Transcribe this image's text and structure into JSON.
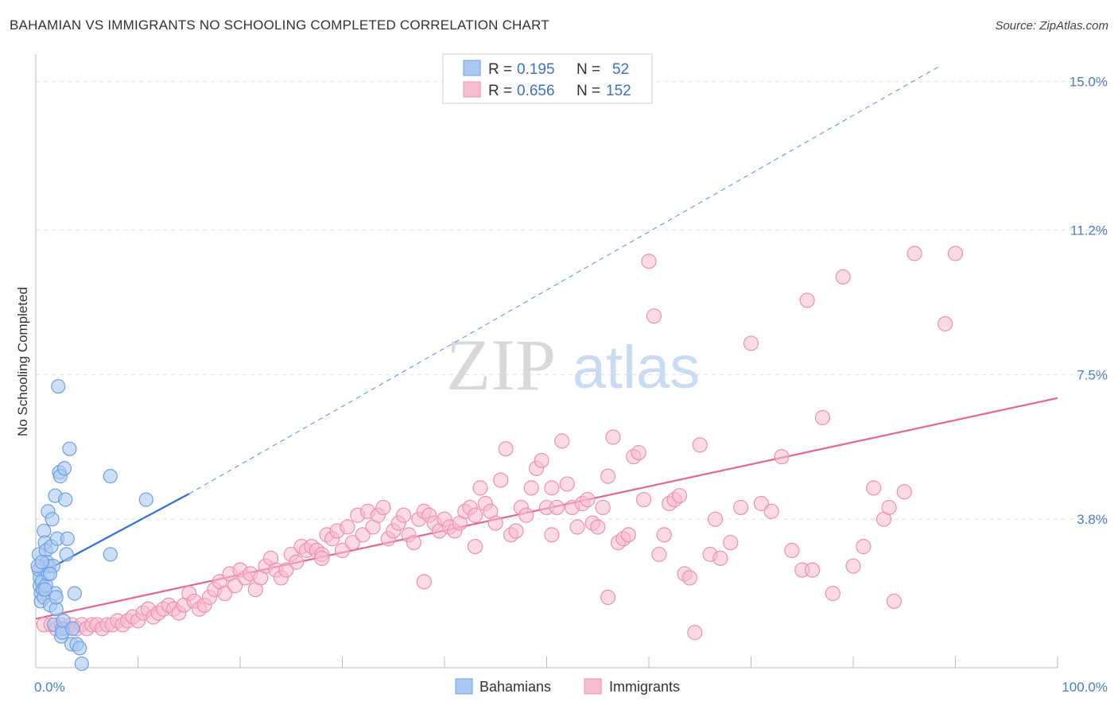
{
  "header": {
    "title": "BAHAMIAN VS IMMIGRANTS NO SCHOOLING COMPLETED CORRELATION CHART",
    "source": "Source: ZipAtlas.com"
  },
  "watermark": {
    "zip": "ZIP",
    "atlas": "atlas"
  },
  "legend_box": {
    "rows": [
      {
        "r_label": "R =",
        "r_value": "0.195",
        "n_label": "N =",
        "n_value": "52"
      },
      {
        "r_label": "R =",
        "r_value": "0.656",
        "n_label": "N =",
        "n_value": "152"
      }
    ]
  },
  "colors": {
    "bahamians_fill": "#aac9f2",
    "bahamians_stroke": "#6f9fe0",
    "bahamians_line": "#2f6fd6",
    "immigrants_fill": "#f7bcd0",
    "immigrants_stroke": "#ee8fb0",
    "immigrants_line": "#e36593",
    "grid": "#dddddd",
    "axis_label": "#4a7cc9"
  },
  "chart_data": {
    "type": "scatter",
    "title": "BAHAMIAN VS IMMIGRANTS NO SCHOOLING COMPLETED CORRELATION CHART",
    "xlabel": "",
    "ylabel": "No Schooling Completed",
    "xlim": [
      0,
      100
    ],
    "ylim": [
      0,
      15.5
    ],
    "x_tick_labels": [
      "0.0%",
      "100.0%"
    ],
    "y_ticks": [
      3.8,
      7.5,
      11.2,
      15.0
    ],
    "y_tick_labels": [
      "3.8%",
      "7.5%",
      "11.2%",
      "15.0%"
    ],
    "grid": true,
    "legend_position": "bottom",
    "series": [
      {
        "name": "Bahamians",
        "R": 0.195,
        "N": 52,
        "trend": {
          "x0": 0,
          "y0": 2.35,
          "x1": 15,
          "y1": 4.45,
          "extend_dashed_to": {
            "x": 88.5,
            "y": 15.4
          }
        },
        "points": [
          [
            0.3,
            2.9
          ],
          [
            0.3,
            2.5
          ],
          [
            0.4,
            2.1
          ],
          [
            0.4,
            2.3
          ],
          [
            0.5,
            1.9
          ],
          [
            0.5,
            1.7
          ],
          [
            0.6,
            2.2
          ],
          [
            0.7,
            2.0
          ],
          [
            0.8,
            1.8
          ],
          [
            0.8,
            3.5
          ],
          [
            0.9,
            3.2
          ],
          [
            1.0,
            2.1
          ],
          [
            1.0,
            3.0
          ],
          [
            1.1,
            2.7
          ],
          [
            1.2,
            4.0
          ],
          [
            1.2,
            2.4
          ],
          [
            1.3,
            2.6
          ],
          [
            1.4,
            1.6
          ],
          [
            1.5,
            3.1
          ],
          [
            1.6,
            3.8
          ],
          [
            1.7,
            2.6
          ],
          [
            1.8,
            1.1
          ],
          [
            1.9,
            4.4
          ],
          [
            1.9,
            1.9
          ],
          [
            2.0,
            1.5
          ],
          [
            2.1,
            3.3
          ],
          [
            2.2,
            7.2
          ],
          [
            2.3,
            5.0
          ],
          [
            2.4,
            4.9
          ],
          [
            2.5,
            0.8
          ],
          [
            2.6,
            1.0
          ],
          [
            2.6,
            0.9
          ],
          [
            2.7,
            1.2
          ],
          [
            2.8,
            5.1
          ],
          [
            2.9,
            4.3
          ],
          [
            3.0,
            2.9
          ],
          [
            3.1,
            3.3
          ],
          [
            3.3,
            5.6
          ],
          [
            3.5,
            0.6
          ],
          [
            3.6,
            1.0
          ],
          [
            3.8,
            1.9
          ],
          [
            4.0,
            0.6
          ],
          [
            4.3,
            0.5
          ],
          [
            4.5,
            0.1
          ],
          [
            7.3,
            4.9
          ],
          [
            7.3,
            2.9
          ],
          [
            10.8,
            4.3
          ],
          [
            0.2,
            2.6
          ],
          [
            0.6,
            2.7
          ],
          [
            1.4,
            2.4
          ],
          [
            2.0,
            1.8
          ],
          [
            0.9,
            2.0
          ]
        ]
      },
      {
        "name": "Immigrants",
        "R": 0.656,
        "N": 152,
        "trend": {
          "x0": 0,
          "y0": 1.25,
          "x1": 100,
          "y1": 6.9
        },
        "points": [
          [
            0.8,
            1.1
          ],
          [
            1.5,
            1.1
          ],
          [
            2.0,
            1.0
          ],
          [
            2.5,
            1.1
          ],
          [
            3.0,
            1.0
          ],
          [
            3.5,
            1.1
          ],
          [
            4.0,
            1.0
          ],
          [
            4.5,
            1.1
          ],
          [
            5.0,
            1.0
          ],
          [
            5.5,
            1.1
          ],
          [
            6.0,
            1.1
          ],
          [
            6.5,
            1.0
          ],
          [
            7.0,
            1.1
          ],
          [
            7.5,
            1.1
          ],
          [
            8.0,
            1.2
          ],
          [
            8.5,
            1.1
          ],
          [
            9.0,
            1.2
          ],
          [
            9.5,
            1.3
          ],
          [
            10.0,
            1.2
          ],
          [
            10.5,
            1.4
          ],
          [
            11.0,
            1.5
          ],
          [
            11.5,
            1.3
          ],
          [
            12.0,
            1.4
          ],
          [
            12.5,
            1.5
          ],
          [
            13.0,
            1.6
          ],
          [
            13.5,
            1.5
          ],
          [
            14.0,
            1.4
          ],
          [
            14.5,
            1.6
          ],
          [
            15.0,
            1.9
          ],
          [
            15.5,
            1.7
          ],
          [
            16.0,
            1.5
          ],
          [
            16.5,
            1.6
          ],
          [
            17.0,
            1.8
          ],
          [
            17.5,
            2.0
          ],
          [
            18.0,
            2.2
          ],
          [
            18.5,
            1.9
          ],
          [
            19.0,
            2.4
          ],
          [
            19.5,
            2.1
          ],
          [
            20.0,
            2.5
          ],
          [
            20.5,
            2.3
          ],
          [
            21.0,
            2.4
          ],
          [
            21.5,
            2.0
          ],
          [
            22.0,
            2.3
          ],
          [
            22.5,
            2.6
          ],
          [
            23.0,
            2.8
          ],
          [
            23.5,
            2.5
          ],
          [
            24.0,
            2.3
          ],
          [
            24.5,
            2.5
          ],
          [
            25.0,
            2.9
          ],
          [
            25.5,
            2.7
          ],
          [
            26.0,
            3.1
          ],
          [
            26.5,
            3.0
          ],
          [
            27.0,
            3.1
          ],
          [
            27.5,
            3.0
          ],
          [
            28.0,
            2.9
          ],
          [
            28.5,
            3.4
          ],
          [
            29.0,
            3.3
          ],
          [
            29.5,
            3.5
          ],
          [
            30.0,
            3.0
          ],
          [
            30.5,
            3.6
          ],
          [
            31.0,
            3.2
          ],
          [
            31.5,
            3.9
          ],
          [
            32.0,
            3.4
          ],
          [
            32.5,
            4.0
          ],
          [
            33.0,
            3.6
          ],
          [
            33.5,
            3.9
          ],
          [
            34.0,
            4.1
          ],
          [
            34.5,
            3.3
          ],
          [
            35.0,
            3.5
          ],
          [
            35.5,
            3.7
          ],
          [
            36.0,
            3.9
          ],
          [
            36.5,
            3.4
          ],
          [
            37.0,
            3.2
          ],
          [
            37.5,
            3.8
          ],
          [
            38.0,
            4.0
          ],
          [
            38.5,
            3.9
          ],
          [
            39.0,
            3.7
          ],
          [
            39.5,
            3.5
          ],
          [
            40.0,
            3.8
          ],
          [
            40.5,
            3.6
          ],
          [
            41.0,
            3.5
          ],
          [
            41.5,
            3.7
          ],
          [
            42.0,
            4.0
          ],
          [
            42.5,
            4.1
          ],
          [
            43.0,
            3.9
          ],
          [
            43.5,
            4.6
          ],
          [
            44.0,
            4.2
          ],
          [
            44.5,
            4.0
          ],
          [
            45.0,
            3.7
          ],
          [
            45.5,
            4.8
          ],
          [
            46.0,
            5.6
          ],
          [
            46.5,
            3.4
          ],
          [
            47.0,
            3.5
          ],
          [
            47.5,
            4.1
          ],
          [
            48.0,
            3.9
          ],
          [
            48.5,
            4.6
          ],
          [
            49.0,
            5.1
          ],
          [
            49.5,
            5.3
          ],
          [
            50.0,
            4.1
          ],
          [
            50.5,
            4.6
          ],
          [
            51.0,
            4.1
          ],
          [
            51.5,
            5.8
          ],
          [
            52.0,
            4.7
          ],
          [
            52.5,
            4.1
          ],
          [
            53.0,
            3.6
          ],
          [
            53.5,
            4.2
          ],
          [
            54.0,
            4.3
          ],
          [
            54.5,
            3.7
          ],
          [
            55.0,
            3.6
          ],
          [
            55.5,
            4.1
          ],
          [
            56.0,
            4.9
          ],
          [
            56.5,
            5.9
          ],
          [
            57.0,
            3.2
          ],
          [
            57.5,
            3.3
          ],
          [
            58.0,
            3.4
          ],
          [
            58.5,
            5.4
          ],
          [
            59.0,
            5.5
          ],
          [
            59.5,
            4.3
          ],
          [
            60.0,
            10.4
          ],
          [
            60.5,
            9.0
          ],
          [
            61.0,
            2.9
          ],
          [
            61.5,
            3.4
          ],
          [
            62.0,
            4.2
          ],
          [
            62.5,
            4.3
          ],
          [
            63.0,
            4.4
          ],
          [
            63.5,
            2.4
          ],
          [
            64.0,
            2.3
          ],
          [
            64.5,
            0.9
          ],
          [
            65.0,
            5.7
          ],
          [
            66.0,
            2.9
          ],
          [
            67.0,
            2.8
          ],
          [
            68.0,
            3.2
          ],
          [
            69.0,
            4.1
          ],
          [
            70.0,
            8.3
          ],
          [
            71.0,
            4.2
          ],
          [
            72.0,
            4.0
          ],
          [
            73.0,
            5.4
          ],
          [
            74.0,
            3.0
          ],
          [
            75.0,
            2.5
          ],
          [
            75.5,
            9.4
          ],
          [
            76.0,
            2.5
          ],
          [
            77.0,
            6.4
          ],
          [
            78.0,
            1.9
          ],
          [
            79.0,
            10.0
          ],
          [
            80.0,
            2.6
          ],
          [
            81.0,
            3.1
          ],
          [
            82.0,
            4.6
          ],
          [
            83.0,
            3.8
          ],
          [
            83.5,
            4.1
          ],
          [
            84.0,
            1.7
          ],
          [
            85.0,
            4.5
          ],
          [
            86.0,
            10.6
          ],
          [
            89.0,
            8.8
          ],
          [
            90.0,
            10.6
          ],
          [
            28.0,
            2.8
          ],
          [
            43.0,
            3.1
          ],
          [
            50.5,
            3.4
          ],
          [
            38.0,
            2.2
          ],
          [
            66.5,
            3.8
          ],
          [
            56.0,
            1.8
          ]
        ]
      }
    ]
  },
  "bottom_legend": {
    "items": [
      {
        "label": "Bahamians"
      },
      {
        "label": "Immigrants"
      }
    ]
  }
}
